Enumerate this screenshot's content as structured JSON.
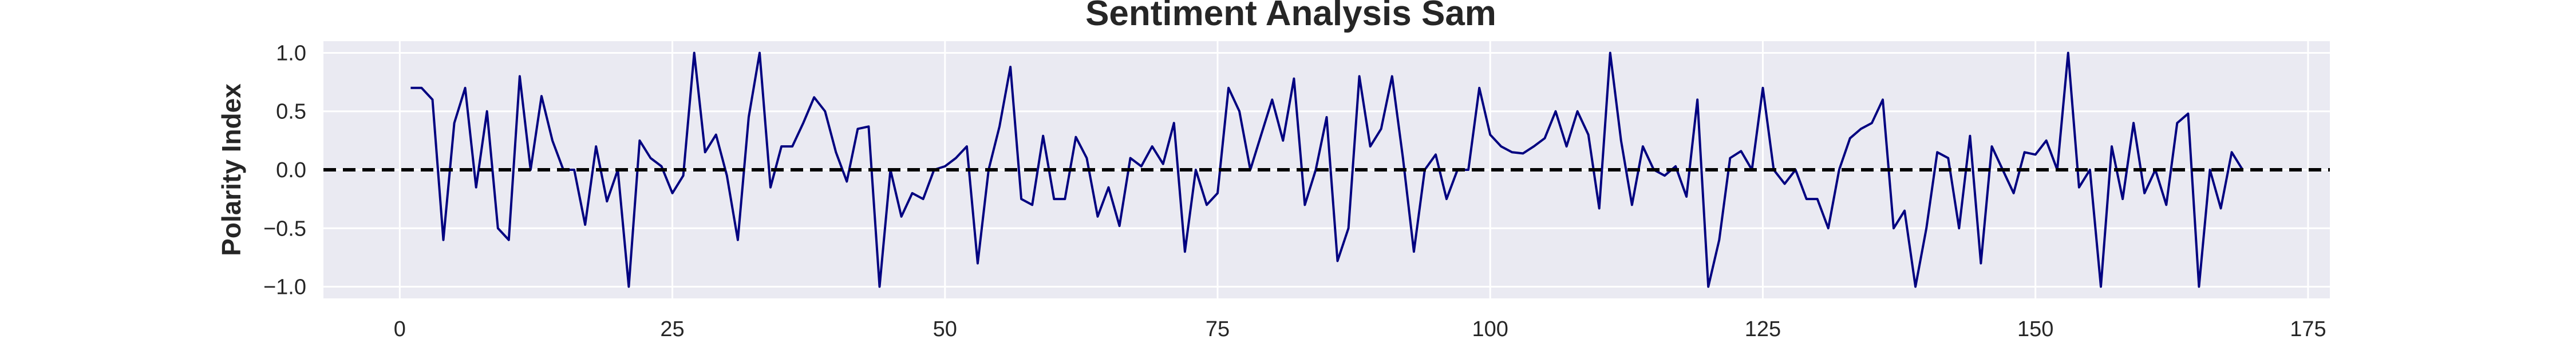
{
  "chart_data": {
    "type": "line",
    "title": "Sentiment Analysis Sam",
    "xlabel": "",
    "ylabel": "Polarity Index",
    "xlim": [
      -7,
      177
    ],
    "ylim": [
      -1.1,
      1.1
    ],
    "xticks": [
      0,
      25,
      50,
      75,
      100,
      125,
      150,
      175
    ],
    "yticks": [
      -1.0,
      -0.5,
      0.0,
      0.5,
      1.0
    ],
    "xtick_labels": [
      "0",
      "25",
      "50",
      "75",
      "100",
      "125",
      "150",
      "175"
    ],
    "ytick_labels": [
      "−1.0",
      "−0.5",
      "0.0",
      "0.5",
      "1.0"
    ],
    "grid": true,
    "background": "#eaeaf2",
    "line_color": "#000080",
    "reference_line": {
      "y": 0.0,
      "style": "dashed",
      "color": "#000000"
    },
    "series": [
      {
        "x": [
          1,
          2,
          3,
          4,
          5,
          6,
          7,
          8,
          9,
          10,
          11,
          12,
          13,
          14,
          15,
          16,
          17,
          18,
          19,
          20,
          21,
          22,
          23,
          24,
          25,
          26,
          27,
          28,
          29,
          30,
          31,
          32,
          33,
          34,
          35,
          36,
          37,
          38,
          39,
          40,
          41,
          42,
          43,
          44,
          45,
          46,
          47,
          48,
          49,
          50,
          51,
          52,
          53,
          54,
          55,
          56,
          57,
          58,
          59,
          60,
          61,
          62,
          63,
          64,
          65,
          66,
          67,
          68,
          69,
          70,
          71,
          72,
          73,
          74,
          75,
          76,
          77,
          78,
          79,
          80,
          81,
          82,
          83,
          84,
          85,
          86,
          87,
          88,
          89,
          90,
          91,
          92,
          93,
          94,
          95,
          96,
          97,
          98,
          99,
          100,
          101,
          102,
          103,
          104,
          105,
          106,
          107,
          108,
          109,
          110,
          111,
          112,
          113,
          114,
          115,
          116,
          117,
          118,
          119,
          120,
          121,
          122,
          123,
          124,
          125,
          126,
          127,
          128,
          129,
          130,
          131,
          132,
          133,
          134,
          135,
          136,
          137,
          138,
          139,
          140,
          141,
          142,
          143,
          144,
          145,
          146,
          147,
          148,
          149,
          150,
          151,
          152,
          153,
          154,
          155,
          156,
          157,
          158,
          159,
          160,
          161,
          162,
          163,
          164,
          165,
          166,
          167,
          168,
          169
        ],
        "values": [
          0.7,
          0.7,
          0.6,
          -0.6,
          0.4,
          0.7,
          -0.15,
          0.5,
          -0.5,
          -0.6,
          0.8,
          0.0,
          0.63,
          0.25,
          0.0,
          0.0,
          -0.47,
          0.2,
          -0.27,
          0.0,
          -1.0,
          0.25,
          0.1,
          0.03,
          -0.2,
          -0.05,
          1.0,
          0.15,
          0.3,
          -0.05,
          -0.6,
          0.45,
          1.0,
          -0.15,
          0.2,
          0.2,
          0.4,
          0.62,
          0.5,
          0.15,
          -0.1,
          0.35,
          0.37,
          -1.0,
          0.0,
          -0.4,
          -0.2,
          -0.25,
          0.0,
          0.03,
          0.1,
          0.2,
          -0.8,
          0.0,
          0.37,
          0.88,
          -0.25,
          -0.3,
          0.29,
          -0.25,
          -0.25,
          0.28,
          0.1,
          -0.4,
          -0.15,
          -0.48,
          0.1,
          0.03,
          0.2,
          0.05,
          0.4,
          -0.7,
          0.0,
          -0.3,
          -0.2,
          0.7,
          0.5,
          0.0,
          0.3,
          0.6,
          0.25,
          0.78,
          -0.3,
          0.0,
          0.45,
          -0.78,
          -0.5,
          0.8,
          0.2,
          0.35,
          0.8,
          0.1,
          -0.7,
          0.0,
          0.13,
          -0.25,
          0.0,
          0.0,
          0.7,
          0.3,
          0.2,
          0.15,
          0.14,
          0.2,
          0.27,
          0.5,
          0.2,
          0.5,
          0.3,
          -0.33,
          1.0,
          0.25,
          -0.3,
          0.2,
          0.0,
          -0.05,
          0.03,
          -0.23,
          0.6,
          -1.0,
          -0.6,
          0.1,
          0.16,
          0.0,
          0.7,
          0.0,
          -0.12,
          0.0,
          -0.25,
          -0.25,
          -0.5,
          0.0,
          0.27,
          0.35,
          0.4,
          0.6,
          -0.5,
          -0.35,
          -1.0,
          -0.5,
          0.15,
          0.1,
          -0.5,
          0.29,
          -0.8,
          0.2,
          0.0,
          -0.2,
          0.15,
          0.13,
          0.25,
          0.0,
          1.0,
          -0.15,
          0.0,
          -1.0,
          0.2,
          -0.25,
          0.4,
          -0.2,
          0.0,
          -0.3,
          0.4,
          0.48,
          -1.0,
          0.0,
          -0.33,
          0.15,
          0.0
        ]
      }
    ]
  }
}
